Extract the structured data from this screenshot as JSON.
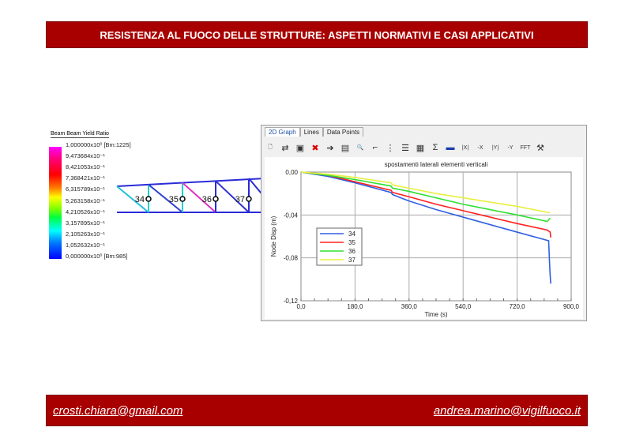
{
  "header": {
    "title": "RESISTENZA AL FUOCO DELLE STRUTTURE: ASPETTI NORMATIVI E CASI APPLICATIVI"
  },
  "footer": {
    "left_email": "crosti.chiara@gmail.com",
    "right_email": "andrea.marino@vigilfuoco.it"
  },
  "colors": {
    "bar": "#a80000",
    "series": [
      "#3060e0",
      "#ff2020",
      "#30e030",
      "#e8f040"
    ]
  },
  "model_legend": {
    "title": "Beam Beam Yield Ratio",
    "labels": [
      "1,000000x10⁰ [Bm:1225]",
      "9,473684x10⁻¹",
      "8,421053x10⁻¹",
      "7,368421x10⁻¹",
      "6,315789x10⁻¹",
      "5,263158x10⁻¹",
      "4,210526x10⁻¹",
      "3,157895x10⁻¹",
      "2,105263x10⁻¹",
      "1,052632x10⁻¹",
      "0,000000x10⁰ [Bm:985]"
    ]
  },
  "truss": {
    "node_labels": [
      "34",
      "35",
      "36",
      "37"
    ]
  },
  "window": {
    "tabs": [
      "2D Graph",
      "Lines",
      "Data Points"
    ],
    "toolbar": [
      {
        "icon": "new-icon",
        "g": "🗋"
      },
      {
        "icon": "swap-icon",
        "g": "⇄"
      },
      {
        "icon": "paste-icon",
        "g": "▣"
      },
      {
        "icon": "delete-icon",
        "g": "✖"
      },
      {
        "icon": "export-icon",
        "g": "➔"
      },
      {
        "icon": "copy-icon",
        "g": "▤"
      },
      {
        "icon": "preview-icon",
        "g": "🔍"
      },
      {
        "icon": "axes-icon",
        "g": "⌐"
      },
      {
        "icon": "grid-icon",
        "g": "⋮"
      },
      {
        "icon": "legend-icon",
        "g": "☰"
      },
      {
        "icon": "chart-icon",
        "g": "▦"
      },
      {
        "icon": "sum-icon",
        "g": "Σ"
      },
      {
        "icon": "car-icon",
        "g": "▬"
      },
      {
        "icon": "abs-x-icon",
        "g": "|X|"
      },
      {
        "icon": "neg-x-icon",
        "g": "-X"
      },
      {
        "icon": "abs-y-icon",
        "g": "|Y|"
      },
      {
        "icon": "neg-y-icon",
        "g": "-Y"
      },
      {
        "icon": "fft-icon",
        "g": "FFT"
      },
      {
        "icon": "hammer-icon",
        "g": "⚒"
      }
    ]
  },
  "chart_data": {
    "type": "line",
    "title": "spostamenti laterali elementi verticali",
    "xlabel": "Time (s)",
    "ylabel": "Node Disp (m)",
    "xlim": [
      0,
      900
    ],
    "ylim": [
      -0.12,
      0
    ],
    "xticks": [
      "0,0",
      "180,0",
      "360,0",
      "540,0",
      "720,0",
      "900,0"
    ],
    "yticks": [
      "0,00",
      "-0,04",
      "-0,08",
      "-0,12"
    ],
    "grid": true,
    "legend": "left",
    "series": [
      {
        "name": "34",
        "x": [
          0,
          90,
          180,
          300,
          305,
          360,
          450,
          540,
          630,
          720,
          825,
          828,
          830,
          832
        ],
        "y": [
          0,
          -0.004,
          -0.01,
          -0.019,
          -0.021,
          -0.027,
          -0.035,
          -0.042,
          -0.049,
          -0.056,
          -0.064,
          -0.085,
          -0.096,
          -0.104
        ]
      },
      {
        "name": "35",
        "x": [
          0,
          90,
          180,
          300,
          305,
          360,
          450,
          540,
          630,
          720,
          820,
          830,
          832
        ],
        "y": [
          0,
          -0.003,
          -0.009,
          -0.017,
          -0.019,
          -0.023,
          -0.03,
          -0.036,
          -0.042,
          -0.048,
          -0.054,
          -0.056,
          -0.061
        ]
      },
      {
        "name": "36",
        "x": [
          0,
          90,
          180,
          300,
          305,
          360,
          450,
          540,
          630,
          720,
          820,
          830
        ],
        "y": [
          0,
          -0.003,
          -0.007,
          -0.013,
          -0.015,
          -0.018,
          -0.024,
          -0.03,
          -0.035,
          -0.04,
          -0.046,
          -0.043
        ]
      },
      {
        "name": "37",
        "x": [
          0,
          90,
          180,
          300,
          305,
          360,
          450,
          540,
          630,
          720,
          830
        ],
        "y": [
          0,
          -0.002,
          -0.005,
          -0.01,
          -0.012,
          -0.015,
          -0.02,
          -0.024,
          -0.028,
          -0.032,
          -0.038
        ]
      }
    ]
  }
}
